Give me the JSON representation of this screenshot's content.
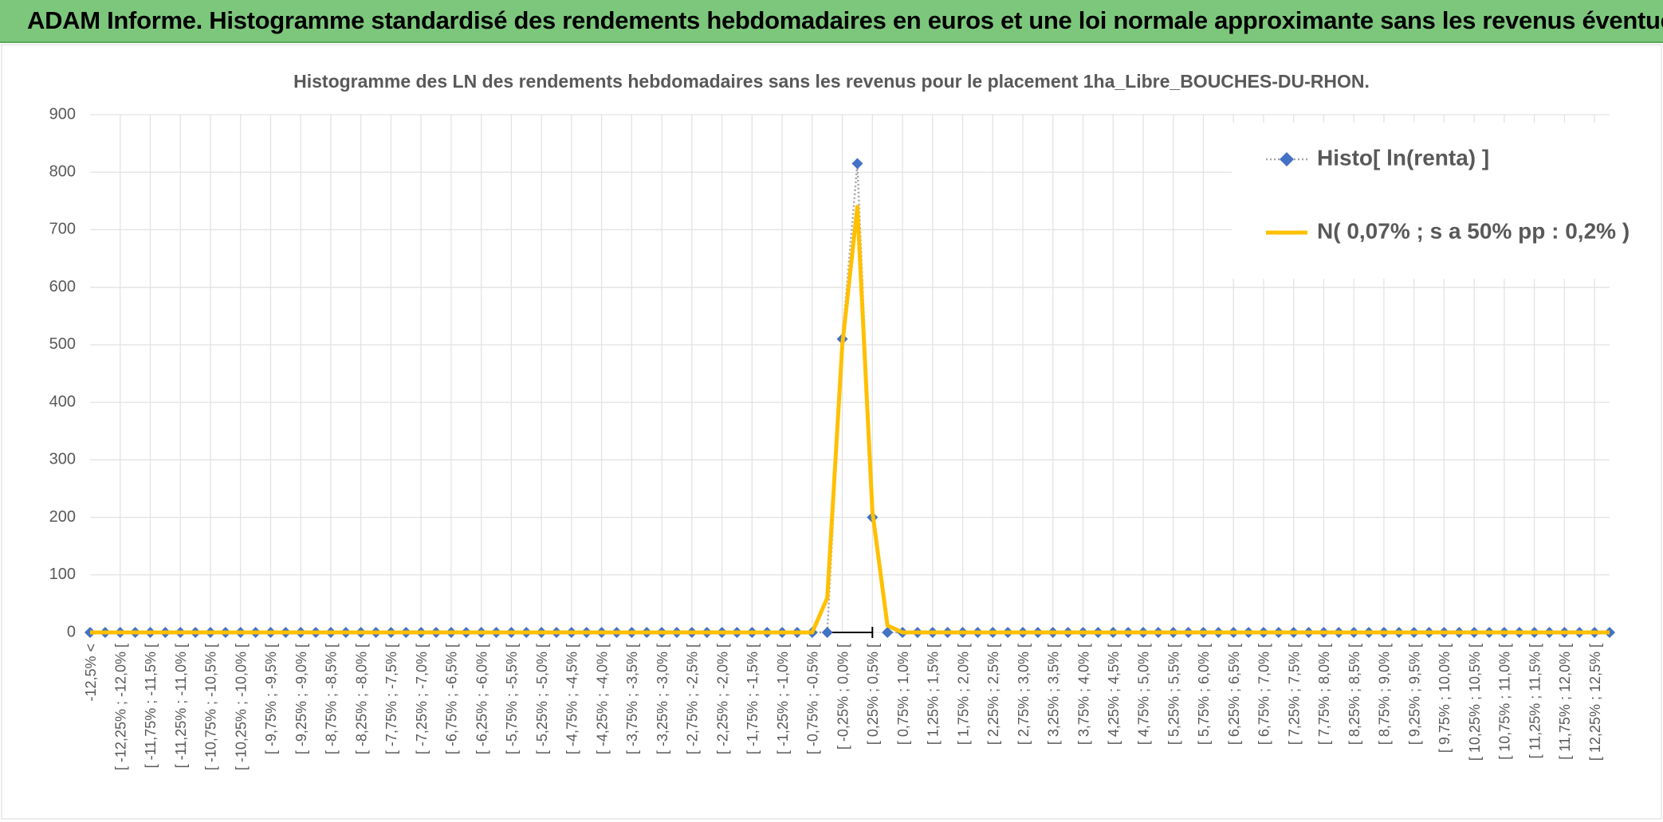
{
  "header": {
    "title": "ADAM Informe. Histogramme standardisé des rendements hebdomadaires en euros et une loi normale approximante sans les revenus éventuels"
  },
  "chart_data": {
    "type": "line",
    "title": "Histogramme des LN des rendements hebdomadaires sans les revenus pour le placement 1ha_Libre_BOUCHES-DU-RHON.",
    "categories": [
      "-12,5% <",
      null,
      "[ -12,25% ; -12,0% [",
      null,
      "[ -11,75% ; -11,5% [",
      null,
      "[ -11,25% ; -11,0% [",
      null,
      "[ -10,75% ; -10,5% [",
      null,
      "[ -10,25% ; -10,0% [",
      null,
      "[ -9,75% ; -9,5% [",
      null,
      "[ -9,25% ; -9,0% [",
      null,
      "[ -8,75% ; -8,5% [",
      null,
      "[ -8,25% ; -8,0% [",
      null,
      "[ -7,75% ; -7,5% [",
      null,
      "[ -7,25% ; -7,0% [",
      null,
      "[ -6,75% ; -6,5% [",
      null,
      "[ -6,25% ; -6,0% [",
      null,
      "[ -5,75% ; -5,5% [",
      null,
      "[ -5,25% ; -5,0% [",
      null,
      "[ -4,75% ; -4,5% [",
      null,
      "[ -4,25% ; -4,0% [",
      null,
      "[ -3,75% ; -3,5% [",
      null,
      "[ -3,25% ; -3,0% [",
      null,
      "[ -2,75% ; -2,5% [",
      null,
      "[ -2,25% ; -2,0% [",
      null,
      "[ -1,75% ; -1,5% [",
      null,
      "[ -1,25% ; -1,0% [",
      null,
      "[ -0,75% ; -0,5% [",
      null,
      "[ -0,25% ; 0,0% [",
      null,
      "[ 0,25% ; 0,5% [",
      null,
      "[ 0,75% ; 1,0% [",
      null,
      "[ 1,25% ; 1,5% [",
      null,
      "[ 1,75% ; 2,0% [",
      null,
      "[ 2,25% ; 2,5% [",
      null,
      "[ 2,75% ; 3,0% [",
      null,
      "[ 3,25% ; 3,5% [",
      null,
      "[ 3,75% ; 4,0% [",
      null,
      "[ 4,25% ; 4,5% [",
      null,
      "[ 4,75% ; 5,0% [",
      null,
      "[ 5,25% ; 5,5% [",
      null,
      "[ 5,75% ; 6,0% [",
      null,
      "[ 6,25% ; 6,5% [",
      null,
      "[ 6,75% ; 7,0% [",
      null,
      "[ 7,25% ; 7,5% [",
      null,
      "[ 7,75% ; 8,0% [",
      null,
      "[ 8,25% ; 8,5% [",
      null,
      "[ 8,75% ; 9,0% [",
      null,
      "[ 9,25% ; 9,5% [",
      null,
      "[ 9,75% ; 10,0% [",
      null,
      "[ 10,25% ; 10,5% [",
      null,
      "[ 10,75% ; 11,0% [",
      null,
      "[ 11,25% ; 11,5% [",
      null,
      "[ 11,75% ; 12,0% [",
      null,
      "[ 12,25% ; 12,5% [",
      null
    ],
    "series": [
      {
        "name": "Histo[ ln(renta) ]",
        "color": "#4472c4",
        "marker": "diamond",
        "line": "dotted",
        "values": [
          0,
          0,
          0,
          0,
          0,
          0,
          0,
          0,
          0,
          0,
          0,
          0,
          0,
          0,
          0,
          0,
          0,
          0,
          0,
          0,
          0,
          0,
          0,
          0,
          0,
          0,
          0,
          0,
          0,
          0,
          0,
          0,
          0,
          0,
          0,
          0,
          0,
          0,
          0,
          0,
          0,
          0,
          0,
          0,
          0,
          0,
          0,
          0,
          0,
          0,
          510,
          815,
          200,
          0,
          0,
          0,
          0,
          0,
          0,
          0,
          0,
          0,
          0,
          0,
          0,
          0,
          0,
          0,
          0,
          0,
          0,
          0,
          0,
          0,
          0,
          0,
          0,
          0,
          0,
          0,
          0,
          0,
          0,
          0,
          0,
          0,
          0,
          0,
          0,
          0,
          0,
          0,
          0,
          0,
          0,
          0,
          0,
          0,
          0,
          0,
          0,
          0
        ]
      },
      {
        "name": "N( 0,07% ; s a 50% pp : 0,2% )",
        "color": "#ffc000",
        "marker": "none",
        "line": "solid",
        "values": [
          0,
          0,
          0,
          0,
          0,
          0,
          0,
          0,
          0,
          0,
          0,
          0,
          0,
          0,
          0,
          0,
          0,
          0,
          0,
          0,
          0,
          0,
          0,
          0,
          0,
          0,
          0,
          0,
          0,
          0,
          0,
          0,
          0,
          0,
          0,
          0,
          0,
          0,
          0,
          0,
          0,
          0,
          0,
          0,
          0,
          0,
          0,
          0,
          0,
          60,
          500,
          740,
          210,
          12,
          0,
          0,
          0,
          0,
          0,
          0,
          0,
          0,
          0,
          0,
          0,
          0,
          0,
          0,
          0,
          0,
          0,
          0,
          0,
          0,
          0,
          0,
          0,
          0,
          0,
          0,
          0,
          0,
          0,
          0,
          0,
          0,
          0,
          0,
          0,
          0,
          0,
          0,
          0,
          0,
          0,
          0,
          0,
          0,
          0,
          0,
          0,
          0
        ]
      }
    ],
    "ylim": [
      0,
      900
    ],
    "yticks": [
      0,
      100,
      200,
      300,
      400,
      500,
      600,
      700,
      800,
      900
    ],
    "grid": true,
    "legend": "top-right"
  }
}
